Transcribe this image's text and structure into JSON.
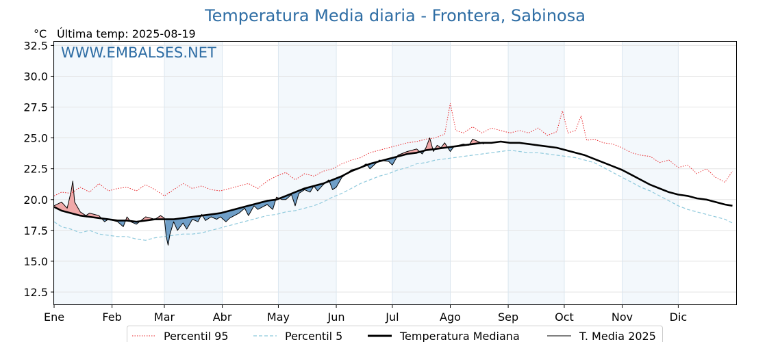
{
  "title": "Temperatura Media diaria - Frontera, Sabinosa",
  "unit": "°C",
  "last_temp": "Última temp: 2025-08-19",
  "watermark": "WWW.EMBALSES.NET",
  "colors": {
    "title": "#2e6da4",
    "p95": "#e8262a",
    "p5": "#8ec9dc",
    "median": "#000000",
    "current": "#000000",
    "above_fill": "#f0a8a8",
    "below_fill": "#6f9fc8",
    "month_band": "#f3f8fc",
    "grid": "#e3e3e3"
  },
  "chart_data": {
    "type": "line",
    "title": "Temperatura Media diaria - Frontera, Sabinosa",
    "ylabel": "°C",
    "ylim": [
      11.5,
      32.8
    ],
    "yticks": [
      "12.5",
      "15.0",
      "17.5",
      "20.0",
      "22.5",
      "25.0",
      "27.5",
      "30.0",
      "32.5"
    ],
    "months": [
      "Ene",
      "Feb",
      "Mar",
      "Abr",
      "May",
      "Jun",
      "Jul",
      "Ago",
      "Sep",
      "Oct",
      "Nov",
      "Dic"
    ],
    "grid": true,
    "shaded_months": true,
    "legend": "bottom-center",
    "x_unit": "day of year",
    "series": [
      {
        "name": "Percentil 95",
        "style": "dotted-red",
        "points": [
          [
            1,
            20.3
          ],
          [
            5,
            20.6
          ],
          [
            10,
            20.5
          ],
          [
            15,
            21.0
          ],
          [
            20,
            20.6
          ],
          [
            25,
            21.3
          ],
          [
            30,
            20.7
          ],
          [
            35,
            20.9
          ],
          [
            40,
            21.0
          ],
          [
            45,
            20.7
          ],
          [
            50,
            21.2
          ],
          [
            55,
            20.8
          ],
          [
            60,
            20.3
          ],
          [
            65,
            20.8
          ],
          [
            70,
            21.3
          ],
          [
            75,
            20.9
          ],
          [
            80,
            21.1
          ],
          [
            85,
            20.8
          ],
          [
            90,
            20.7
          ],
          [
            95,
            20.9
          ],
          [
            100,
            21.1
          ],
          [
            105,
            21.3
          ],
          [
            110,
            20.9
          ],
          [
            115,
            21.5
          ],
          [
            120,
            21.9
          ],
          [
            125,
            22.2
          ],
          [
            130,
            21.6
          ],
          [
            135,
            22.1
          ],
          [
            140,
            21.9
          ],
          [
            145,
            22.3
          ],
          [
            150,
            22.5
          ],
          [
            155,
            22.9
          ],
          [
            160,
            23.2
          ],
          [
            165,
            23.4
          ],
          [
            170,
            23.8
          ],
          [
            175,
            24.0
          ],
          [
            180,
            24.2
          ],
          [
            185,
            24.4
          ],
          [
            190,
            24.6
          ],
          [
            195,
            24.7
          ],
          [
            200,
            24.9
          ],
          [
            205,
            25.0
          ],
          [
            210,
            25.3
          ],
          [
            213,
            27.8
          ],
          [
            216,
            25.6
          ],
          [
            220,
            25.4
          ],
          [
            225,
            25.9
          ],
          [
            230,
            25.4
          ],
          [
            235,
            25.8
          ],
          [
            240,
            25.6
          ],
          [
            245,
            25.4
          ],
          [
            250,
            25.6
          ],
          [
            255,
            25.4
          ],
          [
            260,
            25.8
          ],
          [
            265,
            25.2
          ],
          [
            270,
            25.5
          ],
          [
            273,
            27.2
          ],
          [
            276,
            25.4
          ],
          [
            280,
            25.6
          ],
          [
            283,
            26.8
          ],
          [
            286,
            24.8
          ],
          [
            290,
            24.9
          ],
          [
            295,
            24.6
          ],
          [
            300,
            24.5
          ],
          [
            305,
            24.2
          ],
          [
            310,
            23.8
          ],
          [
            315,
            23.6
          ],
          [
            320,
            23.5
          ],
          [
            325,
            23.0
          ],
          [
            330,
            23.2
          ],
          [
            335,
            22.6
          ],
          [
            340,
            22.8
          ],
          [
            345,
            22.1
          ],
          [
            350,
            22.5
          ],
          [
            355,
            21.8
          ],
          [
            360,
            21.4
          ],
          [
            364,
            22.3
          ]
        ]
      },
      {
        "name": "Percentil 5",
        "style": "dashed-lightblue",
        "points": [
          [
            1,
            18.2
          ],
          [
            5,
            17.8
          ],
          [
            10,
            17.6
          ],
          [
            15,
            17.3
          ],
          [
            20,
            17.5
          ],
          [
            25,
            17.2
          ],
          [
            30,
            17.1
          ],
          [
            35,
            17.0
          ],
          [
            40,
            17.0
          ],
          [
            45,
            16.8
          ],
          [
            50,
            16.7
          ],
          [
            55,
            16.9
          ],
          [
            60,
            17.0
          ],
          [
            65,
            17.1
          ],
          [
            70,
            17.2
          ],
          [
            75,
            17.2
          ],
          [
            80,
            17.3
          ],
          [
            85,
            17.5
          ],
          [
            90,
            17.7
          ],
          [
            95,
            17.9
          ],
          [
            100,
            18.1
          ],
          [
            105,
            18.3
          ],
          [
            110,
            18.5
          ],
          [
            115,
            18.7
          ],
          [
            120,
            18.8
          ],
          [
            125,
            19.0
          ],
          [
            130,
            19.1
          ],
          [
            135,
            19.3
          ],
          [
            140,
            19.5
          ],
          [
            145,
            19.8
          ],
          [
            150,
            20.2
          ],
          [
            155,
            20.5
          ],
          [
            160,
            20.9
          ],
          [
            165,
            21.3
          ],
          [
            170,
            21.6
          ],
          [
            175,
            21.9
          ],
          [
            180,
            22.1
          ],
          [
            185,
            22.4
          ],
          [
            190,
            22.6
          ],
          [
            195,
            22.9
          ],
          [
            200,
            23.0
          ],
          [
            205,
            23.2
          ],
          [
            210,
            23.3
          ],
          [
            215,
            23.4
          ],
          [
            220,
            23.5
          ],
          [
            225,
            23.6
          ],
          [
            230,
            23.7
          ],
          [
            235,
            23.8
          ],
          [
            240,
            23.9
          ],
          [
            245,
            24.0
          ],
          [
            250,
            23.9
          ],
          [
            255,
            23.8
          ],
          [
            260,
            23.8
          ],
          [
            265,
            23.7
          ],
          [
            270,
            23.6
          ],
          [
            275,
            23.5
          ],
          [
            280,
            23.4
          ],
          [
            285,
            23.2
          ],
          [
            290,
            23.0
          ],
          [
            295,
            22.6
          ],
          [
            300,
            22.2
          ],
          [
            305,
            21.8
          ],
          [
            310,
            21.4
          ],
          [
            315,
            21.0
          ],
          [
            320,
            20.7
          ],
          [
            325,
            20.3
          ],
          [
            330,
            19.9
          ],
          [
            335,
            19.5
          ],
          [
            340,
            19.2
          ],
          [
            345,
            19.0
          ],
          [
            350,
            18.8
          ],
          [
            355,
            18.6
          ],
          [
            360,
            18.4
          ],
          [
            364,
            18.1
          ]
        ]
      },
      {
        "name": "Temperatura Mediana",
        "style": "thick-black",
        "points": [
          [
            1,
            19.4
          ],
          [
            5,
            19.1
          ],
          [
            10,
            18.9
          ],
          [
            15,
            18.7
          ],
          [
            20,
            18.6
          ],
          [
            25,
            18.5
          ],
          [
            30,
            18.4
          ],
          [
            35,
            18.3
          ],
          [
            40,
            18.3
          ],
          [
            45,
            18.2
          ],
          [
            50,
            18.3
          ],
          [
            55,
            18.4
          ],
          [
            60,
            18.4
          ],
          [
            65,
            18.4
          ],
          [
            70,
            18.5
          ],
          [
            75,
            18.6
          ],
          [
            80,
            18.7
          ],
          [
            85,
            18.8
          ],
          [
            90,
            18.9
          ],
          [
            95,
            19.1
          ],
          [
            100,
            19.3
          ],
          [
            105,
            19.5
          ],
          [
            110,
            19.7
          ],
          [
            115,
            19.9
          ],
          [
            120,
            20.0
          ],
          [
            125,
            20.3
          ],
          [
            130,
            20.6
          ],
          [
            135,
            20.9
          ],
          [
            140,
            21.1
          ],
          [
            145,
            21.3
          ],
          [
            150,
            21.6
          ],
          [
            155,
            21.9
          ],
          [
            160,
            22.3
          ],
          [
            165,
            22.6
          ],
          [
            170,
            22.9
          ],
          [
            175,
            23.1
          ],
          [
            180,
            23.3
          ],
          [
            185,
            23.5
          ],
          [
            190,
            23.7
          ],
          [
            195,
            23.8
          ],
          [
            200,
            24.0
          ],
          [
            205,
            24.1
          ],
          [
            210,
            24.2
          ],
          [
            215,
            24.3
          ],
          [
            220,
            24.4
          ],
          [
            225,
            24.5
          ],
          [
            230,
            24.6
          ],
          [
            235,
            24.6
          ],
          [
            240,
            24.7
          ],
          [
            245,
            24.6
          ],
          [
            250,
            24.6
          ],
          [
            255,
            24.5
          ],
          [
            260,
            24.4
          ],
          [
            265,
            24.3
          ],
          [
            270,
            24.2
          ],
          [
            275,
            24.0
          ],
          [
            280,
            23.8
          ],
          [
            285,
            23.6
          ],
          [
            290,
            23.3
          ],
          [
            295,
            23.0
          ],
          [
            300,
            22.7
          ],
          [
            305,
            22.4
          ],
          [
            310,
            22.0
          ],
          [
            315,
            21.6
          ],
          [
            320,
            21.2
          ],
          [
            325,
            20.9
          ],
          [
            330,
            20.6
          ],
          [
            335,
            20.4
          ],
          [
            340,
            20.3
          ],
          [
            345,
            20.1
          ],
          [
            350,
            20.0
          ],
          [
            355,
            19.8
          ],
          [
            360,
            19.6
          ],
          [
            364,
            19.5
          ]
        ]
      },
      {
        "name": "T. Media 2025",
        "style": "thin-black",
        "points": [
          [
            1,
            19.5
          ],
          [
            5,
            19.8
          ],
          [
            8,
            19.3
          ],
          [
            10,
            20.6
          ],
          [
            11,
            21.5
          ],
          [
            12,
            19.8
          ],
          [
            15,
            19.0
          ],
          [
            18,
            18.7
          ],
          [
            20,
            18.9
          ],
          [
            25,
            18.7
          ],
          [
            28,
            18.2
          ],
          [
            30,
            18.4
          ],
          [
            35,
            18.2
          ],
          [
            38,
            17.8
          ],
          [
            40,
            18.6
          ],
          [
            42,
            18.2
          ],
          [
            45,
            18.0
          ],
          [
            50,
            18.6
          ],
          [
            55,
            18.4
          ],
          [
            58,
            18.7
          ],
          [
            60,
            18.5
          ],
          [
            61,
            17.0
          ],
          [
            62,
            16.3
          ],
          [
            63,
            17.2
          ],
          [
            65,
            18.2
          ],
          [
            67,
            17.5
          ],
          [
            70,
            18.1
          ],
          [
            72,
            17.6
          ],
          [
            75,
            18.4
          ],
          [
            78,
            18.2
          ],
          [
            80,
            18.8
          ],
          [
            82,
            18.3
          ],
          [
            85,
            18.6
          ],
          [
            88,
            18.4
          ],
          [
            90,
            18.6
          ],
          [
            93,
            18.2
          ],
          [
            95,
            18.5
          ],
          [
            100,
            18.9
          ],
          [
            103,
            19.3
          ],
          [
            105,
            18.7
          ],
          [
            108,
            19.5
          ],
          [
            110,
            19.2
          ],
          [
            115,
            19.6
          ],
          [
            118,
            19.2
          ],
          [
            120,
            20.2
          ],
          [
            123,
            20.0
          ],
          [
            125,
            20.0
          ],
          [
            128,
            20.4
          ],
          [
            130,
            19.5
          ],
          [
            132,
            20.5
          ],
          [
            135,
            20.8
          ],
          [
            138,
            20.6
          ],
          [
            140,
            21.1
          ],
          [
            142,
            20.7
          ],
          [
            145,
            21.2
          ],
          [
            148,
            21.6
          ],
          [
            150,
            20.8
          ],
          [
            152,
            21.0
          ],
          [
            155,
            21.8
          ],
          [
            160,
            22.4
          ],
          [
            165,
            22.6
          ],
          [
            168,
            22.9
          ],
          [
            170,
            22.5
          ],
          [
            175,
            23.2
          ],
          [
            180,
            23.1
          ],
          [
            182,
            22.8
          ],
          [
            185,
            23.6
          ],
          [
            190,
            23.9
          ],
          [
            195,
            24.1
          ],
          [
            198,
            23.7
          ],
          [
            200,
            24.2
          ],
          [
            202,
            25.0
          ],
          [
            204,
            23.9
          ],
          [
            206,
            24.4
          ],
          [
            208,
            24.2
          ],
          [
            210,
            24.6
          ],
          [
            213,
            23.9
          ],
          [
            215,
            24.3
          ],
          [
            220,
            24.5
          ],
          [
            223,
            24.4
          ],
          [
            225,
            24.9
          ],
          [
            228,
            24.7
          ],
          [
            231,
            24.5
          ]
        ]
      }
    ]
  }
}
